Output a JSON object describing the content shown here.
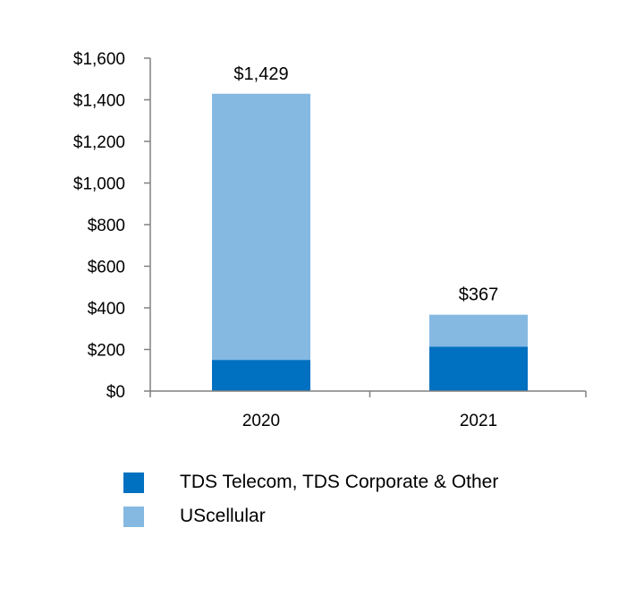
{
  "chart_data": {
    "type": "bar",
    "stacked": true,
    "categories": [
      "2020",
      "2021"
    ],
    "series": [
      {
        "name": "TDS Telecom, TDS Corporate & Other",
        "color": "#0070C0",
        "values": [
          150,
          213
        ]
      },
      {
        "name": "UScellular",
        "color": "#85B9E2",
        "values": [
          1279,
          154
        ]
      }
    ],
    "totals": [
      1429,
      367
    ],
    "total_labels": [
      "$1,429",
      "$367"
    ],
    "ylim": [
      0,
      1600
    ],
    "yticks": [
      0,
      200,
      400,
      600,
      800,
      1000,
      1200,
      1400,
      1600
    ],
    "ytick_labels": [
      "$0",
      "$200",
      "$400",
      "$600",
      "$800",
      "$1,000",
      "$1,200",
      "$1,400",
      "$1,600"
    ],
    "grid": false,
    "legend_position": "bottom-left",
    "title": "",
    "xlabel": "",
    "ylabel": ""
  }
}
